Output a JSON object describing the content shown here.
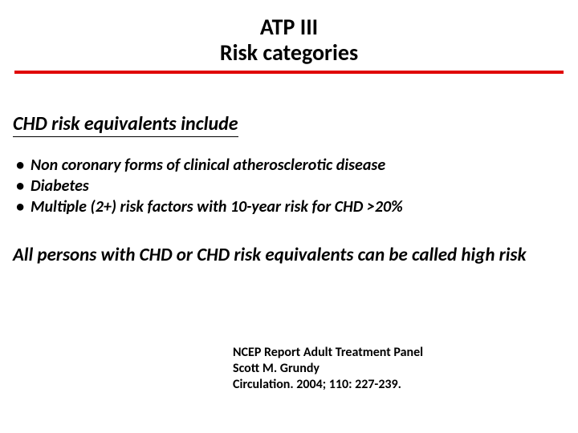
{
  "colors": {
    "rule": "#e00000",
    "text": "#000000",
    "background": "#ffffff"
  },
  "typography": {
    "title_fontsize": 28,
    "heading_fontsize": 24,
    "bullet_fontsize": 20,
    "summary_fontsize": 23,
    "citation_fontsize": 16,
    "base_weight": 700,
    "italic_sections": true,
    "family": "Calibri"
  },
  "title": {
    "line1": "ATP III",
    "line2": "Risk categories"
  },
  "section_heading": "CHD risk equivalents include",
  "bullets": [
    "Non coronary forms of clinical atherosclerotic disease",
    "Diabetes",
    "Multiple (2+) risk factors with 10-year risk for CHD >20%"
  ],
  "summary": "All persons with CHD or CHD risk equivalents can be called high risk",
  "citation": {
    "line1": "NCEP Report  Adult Treatment Panel",
    "line2": "Scott M. Grundy",
    "line3": "Circulation. 2004; 110: 227-239."
  }
}
